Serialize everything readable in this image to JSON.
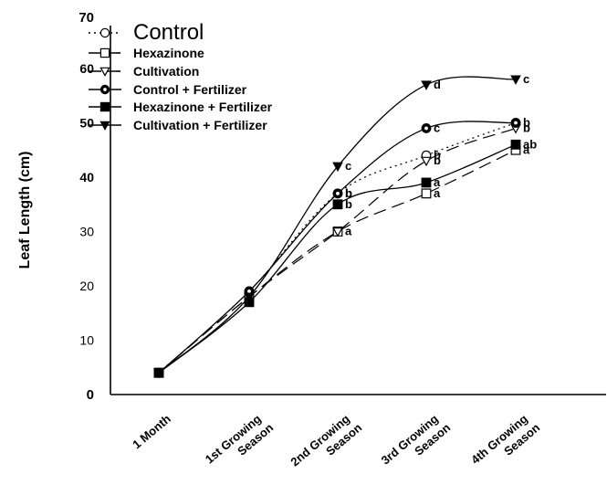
{
  "chart_data": {
    "type": "line",
    "title": "",
    "xlabel": "",
    "ylabel": "Leaf Length (cm)",
    "ylim": [
      0,
      70
    ],
    "y_ticks": [
      "0",
      "10",
      "20",
      "30",
      "40",
      "50",
      "60",
      "70"
    ],
    "categories": [
      "1 Month",
      "1st Growing Season",
      "2nd Growing Season",
      "3rd Growing Season",
      "4th Growing Season"
    ],
    "legend_position": "top-left",
    "grid": false,
    "series": [
      {
        "name": "Control",
        "marker": "circle-open",
        "dash": "dotted",
        "values": [
          4,
          19,
          37,
          44,
          50
        ],
        "labels": [
          "",
          "",
          "b",
          "b",
          "b"
        ]
      },
      {
        "name": "Hexazinone",
        "marker": "square-open",
        "dash": "dashed",
        "values": [
          4,
          18,
          30,
          37,
          45
        ],
        "labels": [
          "",
          "",
          "a",
          "a",
          "a"
        ]
      },
      {
        "name": "Cultivation",
        "marker": "triangle-down-open",
        "dash": "dashed",
        "values": [
          4,
          18,
          30,
          43,
          49
        ],
        "labels": [
          "",
          "",
          "",
          "b",
          "b"
        ]
      },
      {
        "name": "Control + Fertilizer",
        "marker": "circle-filled",
        "dash": "solid",
        "values": [
          4,
          19,
          37,
          49,
          50
        ],
        "labels": [
          "",
          "",
          "b",
          "c",
          ""
        ]
      },
      {
        "name": "Hexazinone + Fertilizer",
        "marker": "square-filled",
        "dash": "solid",
        "values": [
          4,
          17,
          35,
          39,
          46
        ],
        "labels": [
          "",
          "",
          "b",
          "a",
          "ab"
        ]
      },
      {
        "name": "Cultivation + Fertilizer",
        "marker": "triangle-down-filled",
        "dash": "solid",
        "values": [
          4,
          18,
          42,
          57,
          58
        ],
        "labels": [
          "",
          "",
          "c",
          "d",
          "c"
        ]
      }
    ],
    "colors": {
      "ink": "#000000",
      "background": "#ffffff"
    }
  }
}
